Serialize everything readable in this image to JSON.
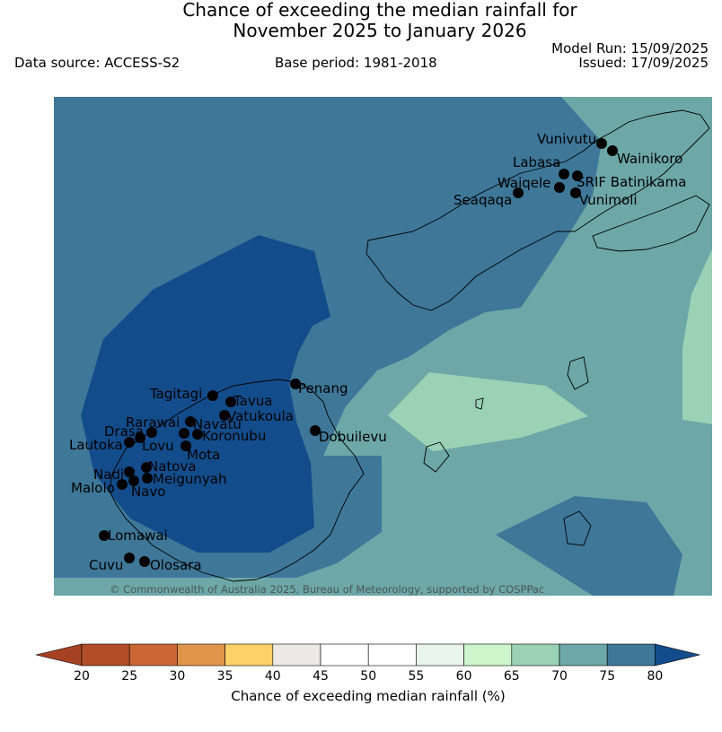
{
  "header": {
    "title_line1": "Chance of exceeding the median rainfall for",
    "title_line2": "November 2025 to January 2026",
    "data_source": "Data source: ACCESS-S2",
    "base_period": "Base period: 1981-2018",
    "model_run": "Model Run: 15/09/2025",
    "issued": "Issued: 17/09/2025"
  },
  "map": {
    "copyright": "© Commonwealth of Australia 2025, Bureau of Meteorology, supported by COSPPac",
    "stations": [
      {
        "name": "Vunivutu"
      },
      {
        "name": "Wainikoro"
      },
      {
        "name": "Labasa"
      },
      {
        "name": "Waiqele"
      },
      {
        "name": "SRIF Batinikama"
      },
      {
        "name": "Seaqaqa"
      },
      {
        "name": "Vunimoli"
      },
      {
        "name": "Penang"
      },
      {
        "name": "Tagitagi"
      },
      {
        "name": "Tavua"
      },
      {
        "name": "Vatukoula"
      },
      {
        "name": "Rarawai"
      },
      {
        "name": "Navatu"
      },
      {
        "name": "Drasa"
      },
      {
        "name": "Koronubu"
      },
      {
        "name": "Lautoka"
      },
      {
        "name": "Lovu"
      },
      {
        "name": "Mota"
      },
      {
        "name": "Dobuilevu"
      },
      {
        "name": "Natova"
      },
      {
        "name": "Nadi"
      },
      {
        "name": "Meigunyah"
      },
      {
        "name": "Malolo"
      },
      {
        "name": "Navo"
      },
      {
        "name": "Lomawai"
      },
      {
        "name": "Cuvu"
      },
      {
        "name": "Olosara"
      }
    ]
  },
  "colorbar": {
    "label": "Chance of exceeding median rainfall (%)",
    "ticks": [
      "20",
      "25",
      "30",
      "35",
      "40",
      "45",
      "50",
      "55",
      "60",
      "65",
      "70",
      "75",
      "80"
    ],
    "colors": [
      "#a54223",
      "#b14d28",
      "#cb6634",
      "#e0954a",
      "#fdd068",
      "#ece8e4",
      "#ffffff",
      "#ffffff",
      "#eaf5ea",
      "#ccf5cc",
      "#9bd1b5",
      "#6da7a7",
      "#3e7798",
      "#134c8a"
    ]
  },
  "legend_colors": {
    "band_70_75": "#6da7a7",
    "band_75_80": "#3e7798",
    "band_80_plus": "#134c8a",
    "band_65_70": "#9bd1b5"
  }
}
